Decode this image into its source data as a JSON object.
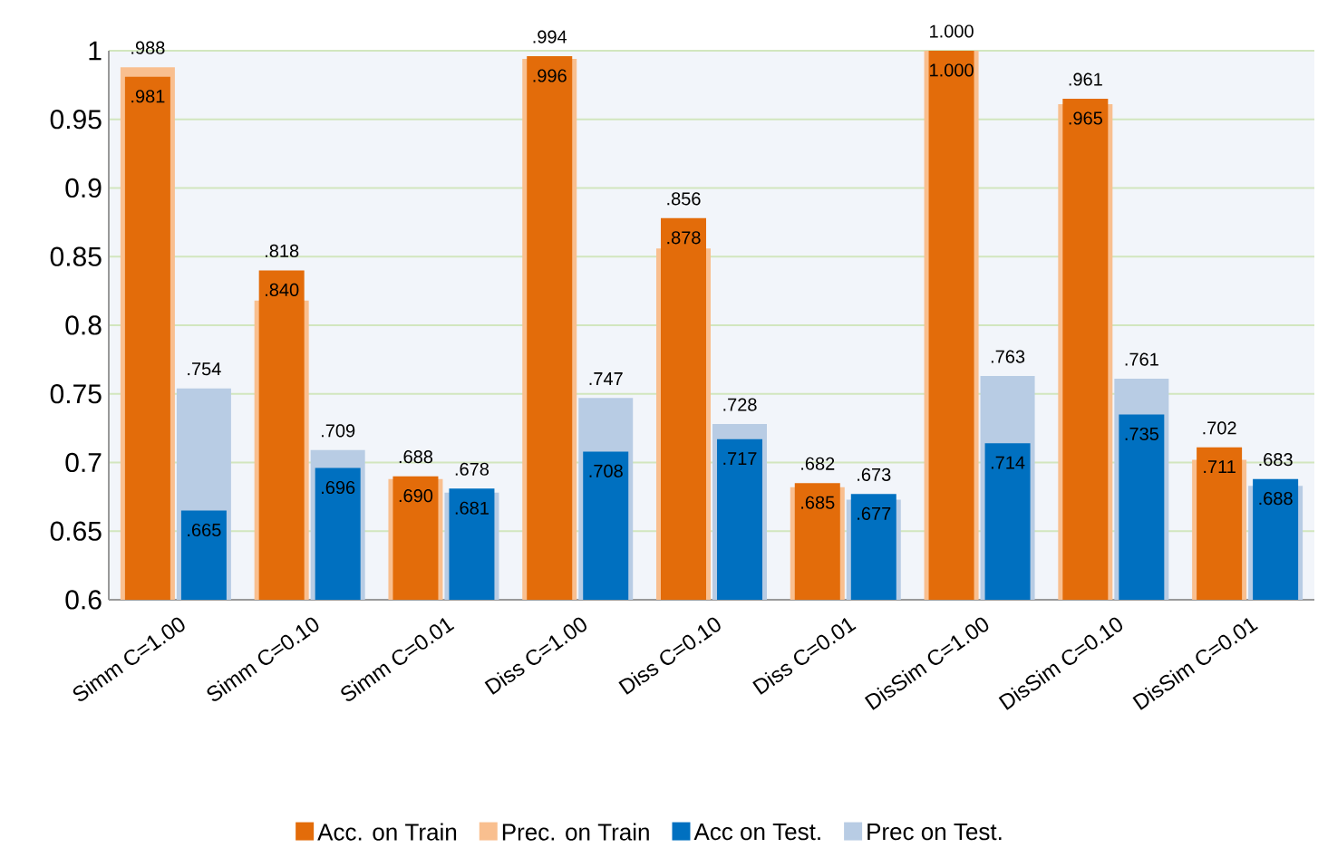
{
  "chart_data": {
    "type": "bar",
    "categories": [
      "Simm C=1.00",
      "Simm C=0.10",
      "Simm C=0.01",
      "Diss C=1.00",
      "Diss C=0.10",
      "Diss C=0.01",
      "DisSim C=1.00",
      "DisSim C=0.10",
      "DisSim C=0.01"
    ],
    "series": [
      {
        "name": "Acc. on Train",
        "color": "#e36c0a",
        "values": [
          0.981,
          0.84,
          0.69,
          0.996,
          0.878,
          0.685,
          1.0,
          0.965,
          0.711
        ],
        "value_labels": [
          ".981",
          ".840",
          ".690",
          ".996",
          ".878",
          ".685",
          "1.000",
          ".965",
          ".711"
        ]
      },
      {
        "name": "Prec. on Train",
        "color": "#f9bf8f",
        "values": [
          0.988,
          0.818,
          0.688,
          0.994,
          0.856,
          0.682,
          1.0,
          0.961,
          0.702
        ],
        "value_labels": [
          ".988",
          ".818",
          ".688",
          ".994",
          ".856",
          ".682",
          "1.000",
          ".961",
          ".702"
        ]
      },
      {
        "name": "Acc on Test.",
        "color": "#0070c0",
        "values": [
          0.665,
          0.696,
          0.681,
          0.708,
          0.717,
          0.677,
          0.714,
          0.735,
          0.688
        ],
        "value_labels": [
          ".665",
          ".696",
          ".681",
          ".708",
          ".717",
          ".677",
          ".714",
          ".735",
          ".688"
        ]
      },
      {
        "name": "Prec on Test.",
        "color": "#b8cce4",
        "values": [
          0.754,
          0.709,
          0.678,
          0.747,
          0.728,
          0.673,
          0.763,
          0.761,
          0.683
        ],
        "value_labels": [
          ".754",
          ".709",
          ".678",
          ".747",
          ".728",
          ".673",
          ".763",
          ".761",
          ".683"
        ]
      }
    ],
    "ylim": [
      0.6,
      1
    ],
    "yticks": [
      0.6,
      0.65,
      0.7,
      0.75,
      0.8,
      0.85,
      0.9,
      0.95,
      1
    ],
    "grid": "y",
    "legend": "bottom"
  }
}
